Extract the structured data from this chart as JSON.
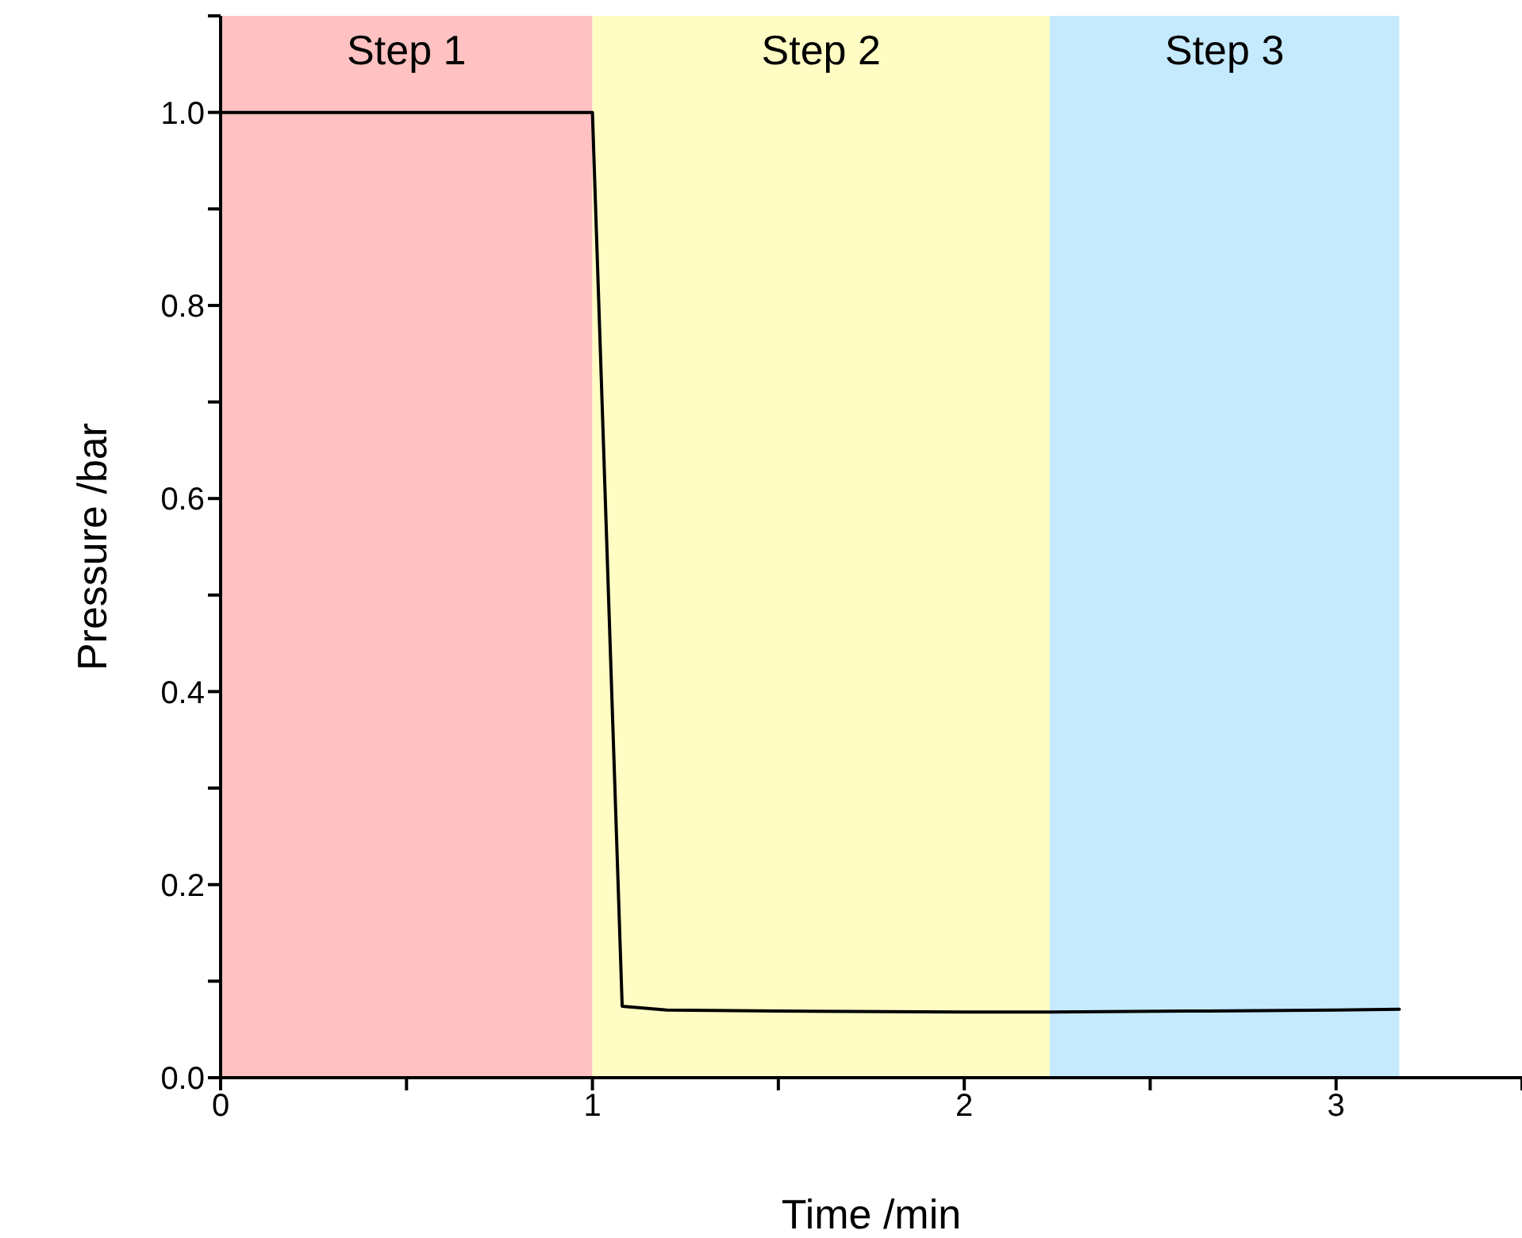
{
  "chart_data": {
    "type": "line",
    "xlabel": "Time /min",
    "ylabel": "Pressure /bar",
    "xlim": [
      0,
      3.5
    ],
    "ylim": [
      0,
      1.1
    ],
    "xticks": [
      0,
      {
        "value": 0.5,
        "label": null
      },
      1,
      {
        "value": 1.5,
        "label": null
      },
      2,
      {
        "value": 2.5,
        "label": null
      },
      3,
      {
        "value": 3.5,
        "label": null
      }
    ],
    "yticks": [
      {
        "value": 0,
        "label": "0.0"
      },
      {
        "value": 0.1,
        "label": null
      },
      {
        "value": 0.2,
        "label": "0.2"
      },
      {
        "value": 0.3,
        "label": null
      },
      {
        "value": 0.4,
        "label": "0.4"
      },
      {
        "value": 0.5,
        "label": null
      },
      {
        "value": 0.6,
        "label": "0.6"
      },
      {
        "value": 0.7,
        "label": null
      },
      {
        "value": 0.8,
        "label": "0.8"
      },
      {
        "value": 0.9,
        "label": null
      },
      {
        "value": 1,
        "label": "1.0"
      },
      {
        "value": 1.1,
        "label": null
      }
    ],
    "grid": false,
    "legend": false,
    "marker": "none",
    "line_style": "solid",
    "bands": [
      {
        "axis": "x",
        "from": 0,
        "to": 1,
        "label": "Step 1",
        "color": "#ffc1c1"
      },
      {
        "axis": "x",
        "from": 1,
        "to": 2.23,
        "label": "Step 2",
        "color": "#fffdc4"
      },
      {
        "axis": "x",
        "from": 2.23,
        "to": 3.17,
        "label": "Step 3",
        "color": "#c5eafd"
      }
    ],
    "series": [
      {
        "color": "#000000",
        "x": [
          0,
          0.5,
          1.0,
          1.08,
          1.2,
          1.5,
          2.0,
          2.23,
          2.6,
          3.0,
          3.17
        ],
        "values": [
          1.0,
          1.0,
          1.0,
          0.074,
          0.07,
          0.069,
          0.068,
          0.068,
          0.069,
          0.07,
          0.071
        ]
      }
    ]
  }
}
